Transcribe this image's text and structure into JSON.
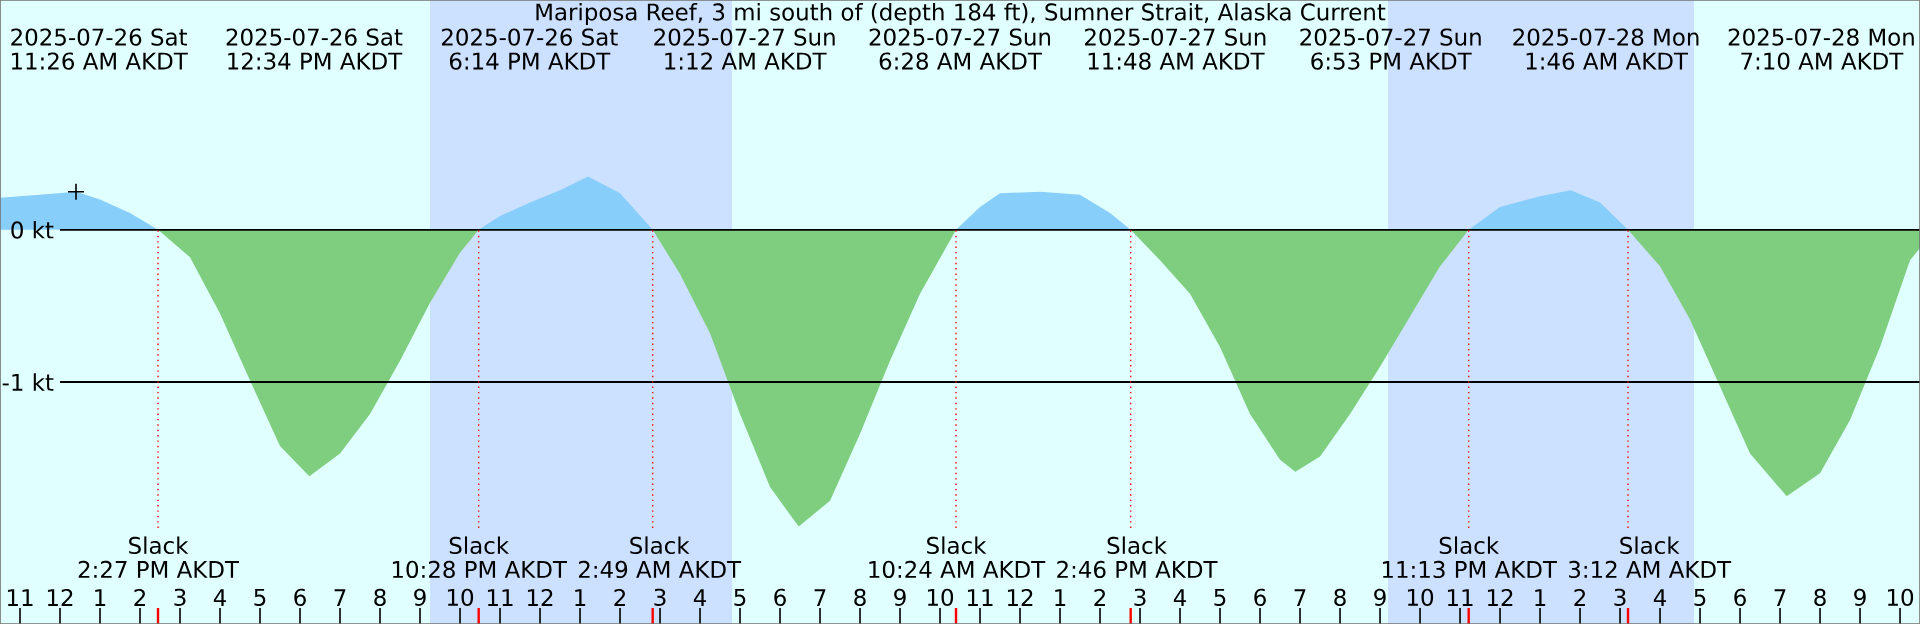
{
  "chart_data": {
    "type": "area",
    "title": "Mariposa Reef, 3 mi south of (depth 184 ft), Sumner Strait, Alaska Current",
    "xlim": [
      "2025-07-26T10:30",
      "2025-07-28T10:30"
    ],
    "ylim": [
      -2.59,
      1.51
    ],
    "xticks": [
      {
        "value": "2025-07-26T11:00",
        "label": "11"
      },
      {
        "value": "2025-07-26T12:00",
        "label": "12"
      },
      {
        "value": "2025-07-26T13:00",
        "label": "1"
      },
      {
        "value": "2025-07-26T14:00",
        "label": "2"
      },
      {
        "value": "2025-07-26T15:00",
        "label": "3"
      },
      {
        "value": "2025-07-26T16:00",
        "label": "4"
      },
      {
        "value": "2025-07-26T17:00",
        "label": "5"
      },
      {
        "value": "2025-07-26T18:00",
        "label": "6"
      },
      {
        "value": "2025-07-26T19:00",
        "label": "7"
      },
      {
        "value": "2025-07-26T20:00",
        "label": "8"
      },
      {
        "value": "2025-07-26T21:00",
        "label": "9"
      },
      {
        "value": "2025-07-26T22:00",
        "label": "10"
      },
      {
        "value": "2025-07-26T23:00",
        "label": "11"
      },
      {
        "value": "2025-07-27T00:00",
        "label": "12"
      },
      {
        "value": "2025-07-27T01:00",
        "label": "1"
      },
      {
        "value": "2025-07-27T02:00",
        "label": "2"
      },
      {
        "value": "2025-07-27T03:00",
        "label": "3"
      },
      {
        "value": "2025-07-27T04:00",
        "label": "4"
      },
      {
        "value": "2025-07-27T05:00",
        "label": "5"
      },
      {
        "value": "2025-07-27T06:00",
        "label": "6"
      },
      {
        "value": "2025-07-27T07:00",
        "label": "7"
      },
      {
        "value": "2025-07-27T08:00",
        "label": "8"
      },
      {
        "value": "2025-07-27T09:00",
        "label": "9"
      },
      {
        "value": "2025-07-27T10:00",
        "label": "10"
      },
      {
        "value": "2025-07-27T11:00",
        "label": "11"
      },
      {
        "value": "2025-07-27T12:00",
        "label": "12"
      },
      {
        "value": "2025-07-27T13:00",
        "label": "1"
      },
      {
        "value": "2025-07-27T14:00",
        "label": "2"
      },
      {
        "value": "2025-07-27T15:00",
        "label": "3"
      },
      {
        "value": "2025-07-27T16:00",
        "label": "4"
      },
      {
        "value": "2025-07-27T17:00",
        "label": "5"
      },
      {
        "value": "2025-07-27T18:00",
        "label": "6"
      },
      {
        "value": "2025-07-27T19:00",
        "label": "7"
      },
      {
        "value": "2025-07-27T20:00",
        "label": "8"
      },
      {
        "value": "2025-07-27T21:00",
        "label": "9"
      },
      {
        "value": "2025-07-27T22:00",
        "label": "10"
      },
      {
        "value": "2025-07-27T23:00",
        "label": "11"
      },
      {
        "value": "2025-07-28T00:00",
        "label": "12"
      },
      {
        "value": "2025-07-28T01:00",
        "label": "1"
      },
      {
        "value": "2025-07-28T02:00",
        "label": "2"
      },
      {
        "value": "2025-07-28T03:00",
        "label": "3"
      },
      {
        "value": "2025-07-28T04:00",
        "label": "4"
      },
      {
        "value": "2025-07-28T05:00",
        "label": "5"
      },
      {
        "value": "2025-07-28T06:00",
        "label": "6"
      },
      {
        "value": "2025-07-28T07:00",
        "label": "7"
      },
      {
        "value": "2025-07-28T08:00",
        "label": "8"
      },
      {
        "value": "2025-07-28T09:00",
        "label": "9"
      },
      {
        "value": "2025-07-28T10:00",
        "label": "10"
      }
    ],
    "yticks": [
      {
        "value": 0,
        "label": "0 kt"
      },
      {
        "value": -1,
        "label": "-1 kt"
      }
    ],
    "grid": "y",
    "bands": [
      {
        "axis": "x",
        "from": "2025-07-26T21:15",
        "to": "2025-07-27T04:48",
        "color": "#cce0ff"
      },
      {
        "axis": "x",
        "from": "2025-07-27T21:12",
        "to": "2025-07-28T04:51",
        "color": "#cce0ff"
      }
    ],
    "ref_lines": [
      {
        "axis": "x",
        "value": "2025-07-26T14:27",
        "label": "Slack 2:27 PM AKDT",
        "color": "#ff0000"
      },
      {
        "axis": "x",
        "value": "2025-07-26T22:28",
        "label": "Slack 10:28 PM AKDT",
        "color": "#ff0000"
      },
      {
        "axis": "x",
        "value": "2025-07-27T02:49",
        "label": "Slack 2:49 AM AKDT",
        "color": "#ff0000"
      },
      {
        "axis": "x",
        "value": "2025-07-27T10:24",
        "label": "Slack 10:24 AM AKDT",
        "color": "#ff0000"
      },
      {
        "axis": "x",
        "value": "2025-07-27T14:46",
        "label": "Slack 2:46 PM AKDT",
        "color": "#ff0000"
      },
      {
        "axis": "x",
        "value": "2025-07-27T23:13",
        "label": "Slack 11:13 PM AKDT",
        "color": "#ff0000"
      },
      {
        "axis": "x",
        "value": "2025-07-28T03:12",
        "label": "Slack 3:12 AM AKDT",
        "color": "#ff0000"
      }
    ],
    "series": [
      {
        "color": "#87cefa",
        "x": [
          "2025-07-26T10:30",
          "2025-07-26T11:30",
          "2025-07-26T12:24",
          "2025-07-26T13:00",
          "2025-07-26T13:45",
          "2025-07-26T14:27",
          "2025-07-26T18:00",
          "2025-07-26T22:28",
          "2025-07-26T23:00",
          "2025-07-26T23:45",
          "2025-07-27T00:30",
          "2025-07-27T01:12",
          "2025-07-27T02:00",
          "2025-07-27T02:49",
          "2025-07-27T06:00",
          "2025-07-27T10:24",
          "2025-07-27T11:00",
          "2025-07-27T11:30",
          "2025-07-27T12:30",
          "2025-07-27T13:30",
          "2025-07-27T14:15",
          "2025-07-27T14:46",
          "2025-07-27T19:00",
          "2025-07-27T23:13",
          "2025-07-28T00:00",
          "2025-07-28T01:00",
          "2025-07-28T01:46",
          "2025-07-28T02:30",
          "2025-07-28T03:12"
        ],
        "values": [
          0.21,
          0.23,
          0.25,
          0.2,
          0.11,
          0,
          null,
          0,
          0.09,
          0.18,
          0.26,
          0.35,
          0.24,
          0,
          null,
          0,
          0.15,
          0.24,
          0.25,
          0.23,
          0.11,
          0,
          null,
          0,
          0.15,
          0.22,
          0.26,
          0.18,
          0
        ]
      },
      {
        "color": "#7fce7f",
        "x": [
          "2025-07-26T14:27",
          "2025-07-26T15:15",
          "2025-07-26T16:00",
          "2025-07-26T16:45",
          "2025-07-26T17:30",
          "2025-07-26T18:14",
          "2025-07-26T19:00",
          "2025-07-26T19:45",
          "2025-07-26T20:30",
          "2025-07-26T21:15",
          "2025-07-26T22:00",
          "2025-07-26T22:28",
          "2025-07-27T00:00",
          "2025-07-27T02:49",
          "2025-07-27T03:30",
          "2025-07-27T04:15",
          "2025-07-27T05:00",
          "2025-07-27T05:45",
          "2025-07-27T06:28",
          "2025-07-27T07:15",
          "2025-07-27T08:00",
          "2025-07-27T08:45",
          "2025-07-27T09:30",
          "2025-07-27T10:24",
          "2025-07-27T12:00",
          "2025-07-27T14:46",
          "2025-07-27T15:30",
          "2025-07-27T16:15",
          "2025-07-27T17:00",
          "2025-07-27T17:45",
          "2025-07-27T18:30",
          "2025-07-27T18:53",
          "2025-07-27T19:30",
          "2025-07-27T20:15",
          "2025-07-27T21:00",
          "2025-07-27T21:45",
          "2025-07-27T22:30",
          "2025-07-27T23:13",
          "2025-07-28T01:00",
          "2025-07-28T03:12",
          "2025-07-28T04:00",
          "2025-07-28T04:45",
          "2025-07-28T05:30",
          "2025-07-28T06:15",
          "2025-07-28T07:10",
          "2025-07-28T08:00",
          "2025-07-28T08:45",
          "2025-07-28T09:30",
          "2025-07-28T10:15",
          "2025-07-28T10:30"
        ],
        "values": [
          0,
          -0.18,
          -0.55,
          -0.99,
          -1.42,
          -1.62,
          -1.47,
          -1.21,
          -0.86,
          -0.48,
          -0.15,
          0,
          null,
          0,
          -0.29,
          -0.68,
          -1.21,
          -1.69,
          -1.95,
          -1.78,
          -1.34,
          -0.86,
          -0.42,
          0,
          null,
          0,
          -0.2,
          -0.42,
          -0.77,
          -1.21,
          -1.51,
          -1.59,
          -1.49,
          -1.21,
          -0.9,
          -0.57,
          -0.24,
          0,
          null,
          0,
          -0.24,
          -0.59,
          -1.03,
          -1.47,
          -1.75,
          -1.6,
          -1.25,
          -0.77,
          -0.2,
          -0.12
        ]
      },
      {
        "type": "scatter",
        "color": "#000000",
        "marker": "cross",
        "x": [
          "2025-07-26T12:24"
        ],
        "values": [
          0.25
        ]
      }
    ],
    "annotations": [
      "2025-07-26 Sat 11:26 AM AKDT",
      "2025-07-26 Sat 12:34 PM AKDT",
      "2025-07-26 Sat 6:14 PM AKDT",
      "2025-07-27 Sun 1:12 AM AKDT",
      "2025-07-27 Sun 6:28 AM AKDT",
      "2025-07-27 Sun 11:48 AM AKDT",
      "2025-07-27 Sun 6:53 PM AKDT",
      "2025-07-28 Mon 1:46 AM AKDT",
      "2025-07-28 Mon 7:10 AM AKDT"
    ]
  }
}
